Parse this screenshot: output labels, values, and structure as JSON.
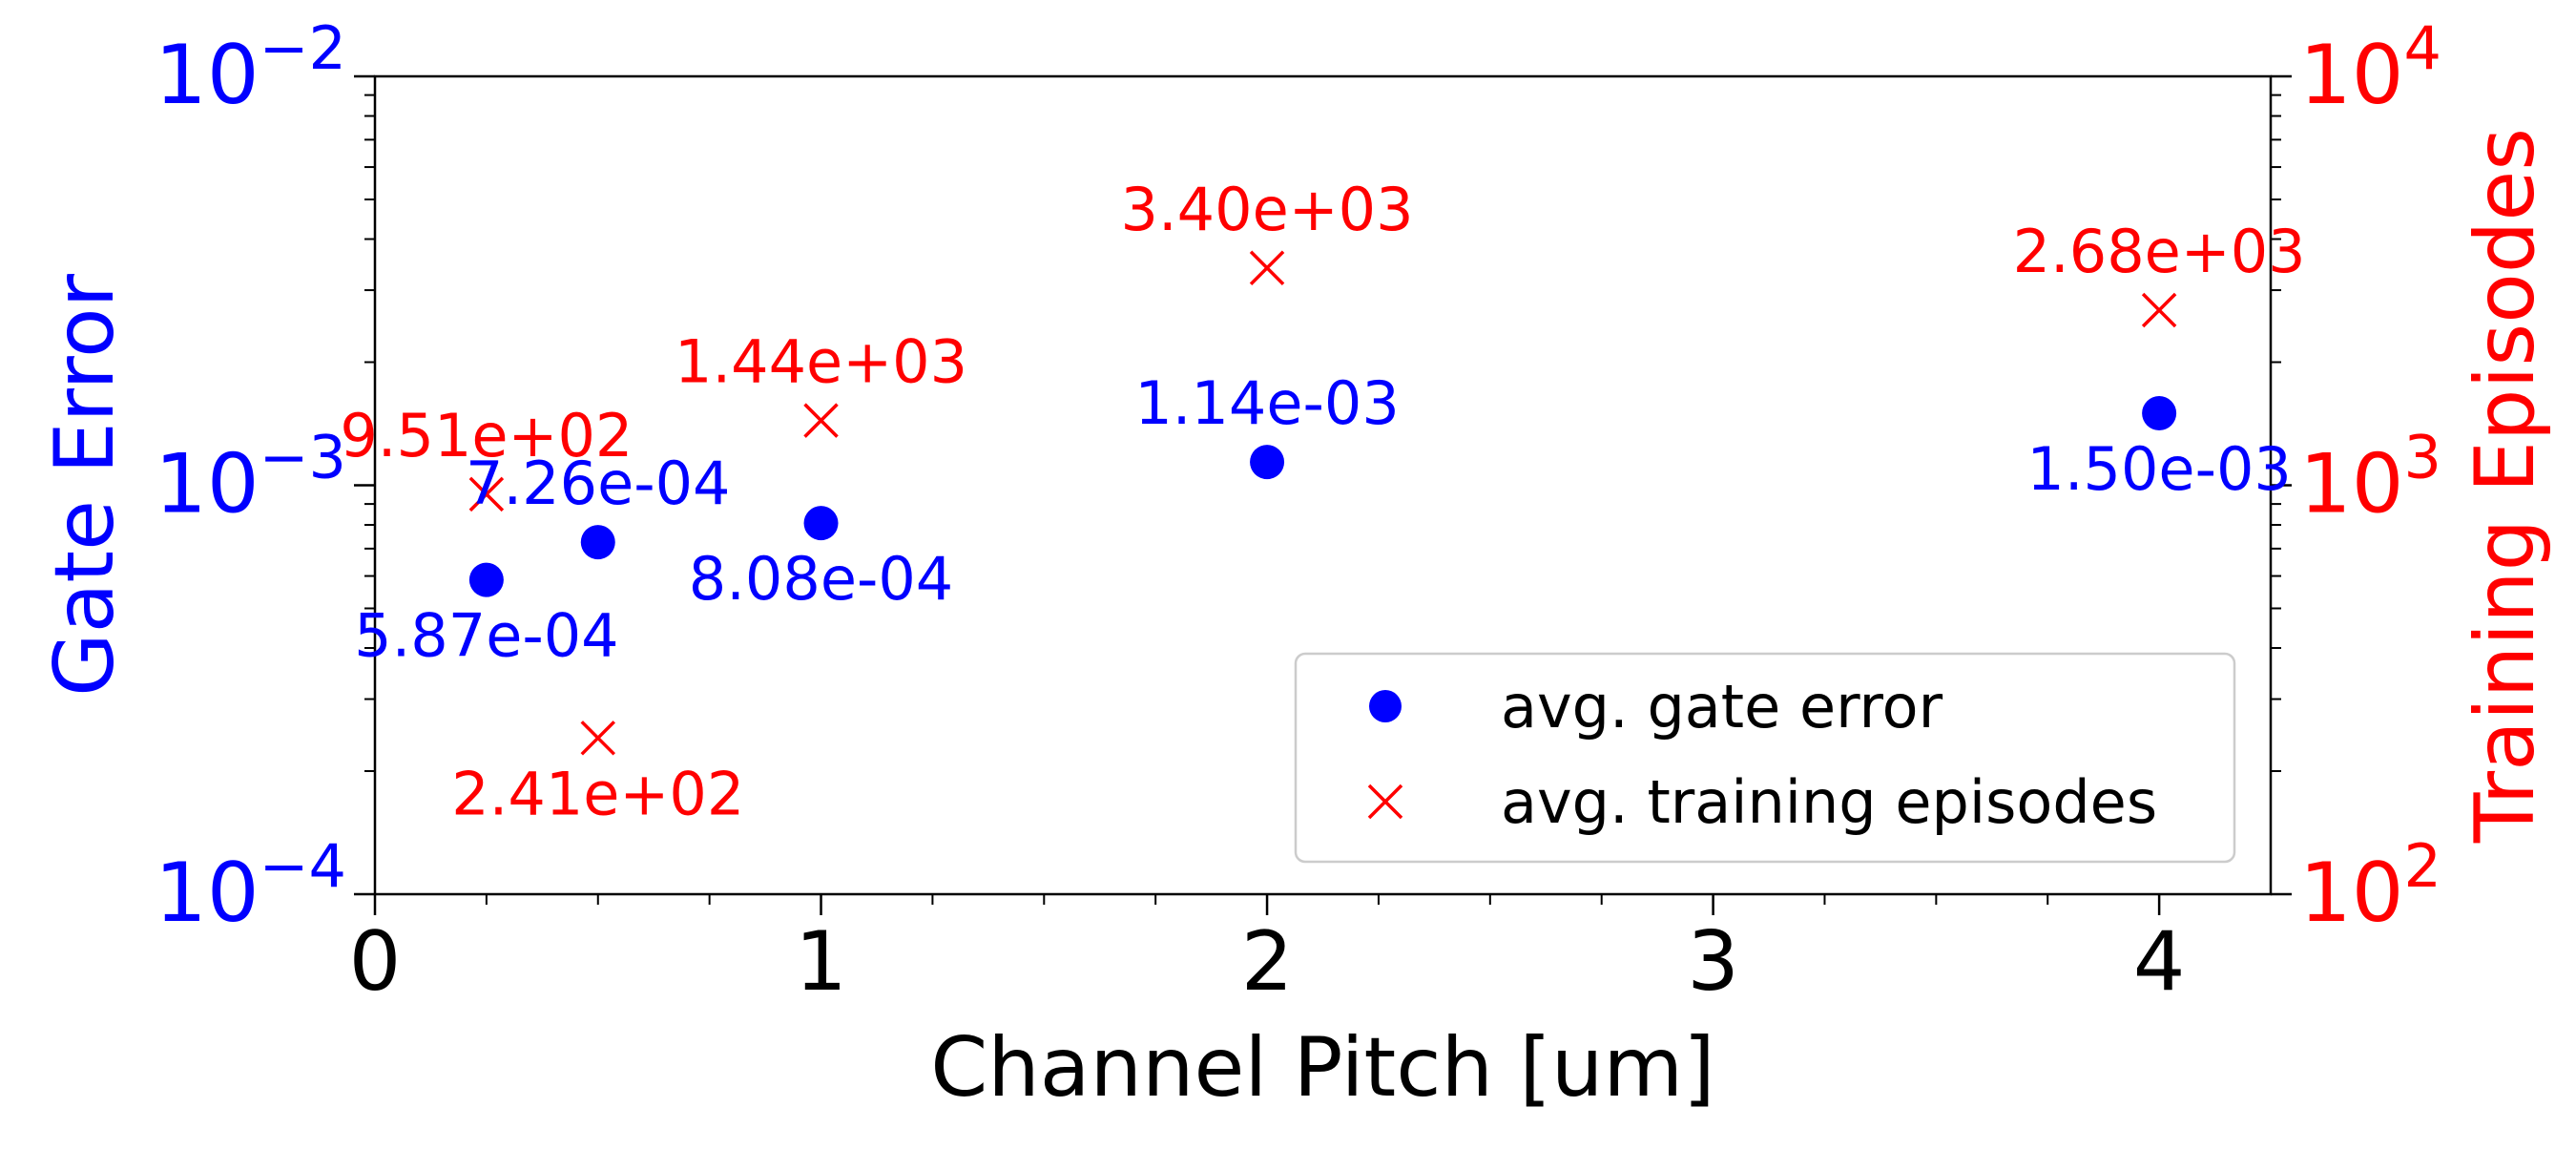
{
  "chart_data": {
    "type": "scatter",
    "xlabel": "Channel Pitch [um]",
    "xlim": [
      0,
      4.25
    ],
    "xticks": [
      0,
      1,
      2,
      3,
      4
    ],
    "x_tick_labels": [
      "0",
      "1",
      "2",
      "3",
      "4"
    ],
    "y_left": {
      "label": "Gate Error",
      "scale": "log",
      "lim": [
        0.0001,
        0.01
      ],
      "tick_values": [
        0.0001,
        0.001,
        0.01
      ],
      "tick_labels": [
        {
          "base": "10",
          "exp": "−4"
        },
        {
          "base": "10",
          "exp": "−3"
        },
        {
          "base": "10",
          "exp": "−2"
        }
      ],
      "color": "#0000ff"
    },
    "y_right": {
      "label": "Training Episodes",
      "scale": "log",
      "lim": [
        100,
        10000
      ],
      "tick_values": [
        100,
        1000,
        10000
      ],
      "tick_labels": [
        {
          "base": "10",
          "exp": "2"
        },
        {
          "base": "10",
          "exp": "3"
        },
        {
          "base": "10",
          "exp": "4"
        }
      ],
      "color": "#ff0000"
    },
    "series": [
      {
        "name": "avg. gate error",
        "axis": "left",
        "marker": "circle",
        "color": "#0000ff",
        "x": [
          0.25,
          0.5,
          1,
          2,
          4
        ],
        "y": [
          0.000587,
          0.000726,
          0.000808,
          0.00114,
          0.0015
        ],
        "labels": [
          "5.87e-04",
          "7.26e-04",
          "8.08e-04",
          "1.14e-03",
          "1.50e-03"
        ],
        "label_positions": [
          "below",
          "above",
          "below",
          "above",
          "below"
        ]
      },
      {
        "name": "avg. training episodes",
        "axis": "right",
        "marker": "x",
        "color": "#ff0000",
        "x": [
          0.25,
          0.5,
          1,
          2,
          4
        ],
        "y": [
          951,
          241,
          1440,
          3400,
          2680
        ],
        "labels": [
          "9.51e+02",
          "2.41e+02",
          "1.44e+03",
          "3.40e+03",
          "2.68e+03"
        ],
        "label_positions": [
          "above",
          "below",
          "above",
          "above",
          "above"
        ]
      }
    ],
    "legend": {
      "position": "lower-right",
      "entries": [
        "avg. gate error",
        "avg. training episodes"
      ]
    },
    "grid": false
  }
}
